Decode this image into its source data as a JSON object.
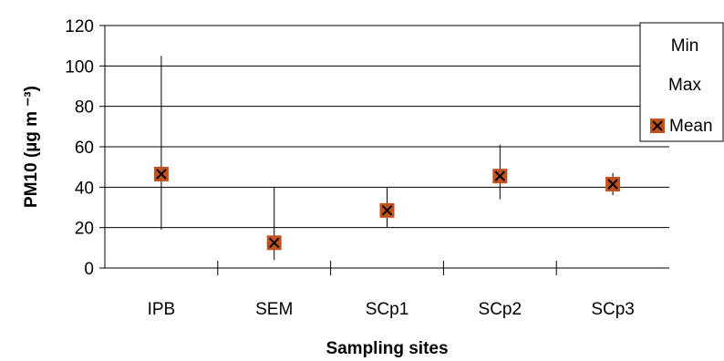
{
  "chart_data": {
    "type": "scatter",
    "title": "",
    "xlabel": "Sampling sites",
    "ylabel": "PM10 (µg m ⁻³)",
    "categories": [
      "IPB",
      "SEM",
      "SCp1",
      "SCp2",
      "SCp3"
    ],
    "ylim": [
      0,
      120
    ],
    "yticks": [
      "0",
      "20",
      "40",
      "60",
      "80",
      "100",
      "120"
    ],
    "grid": true,
    "legend_position": "top-right",
    "series": [
      {
        "name": "Min",
        "values": [
          19,
          4,
          20,
          34,
          36
        ]
      },
      {
        "name": "Max",
        "values": [
          105,
          40,
          40,
          61,
          47
        ]
      },
      {
        "name": "Mean",
        "values": [
          46.5,
          12.5,
          28.5,
          45.5,
          41.5
        ]
      }
    ],
    "colors": {
      "mean_marker": "#c0521e",
      "mean_marker_x": "#000000",
      "axis": "#000000",
      "grid": "#000000"
    }
  }
}
